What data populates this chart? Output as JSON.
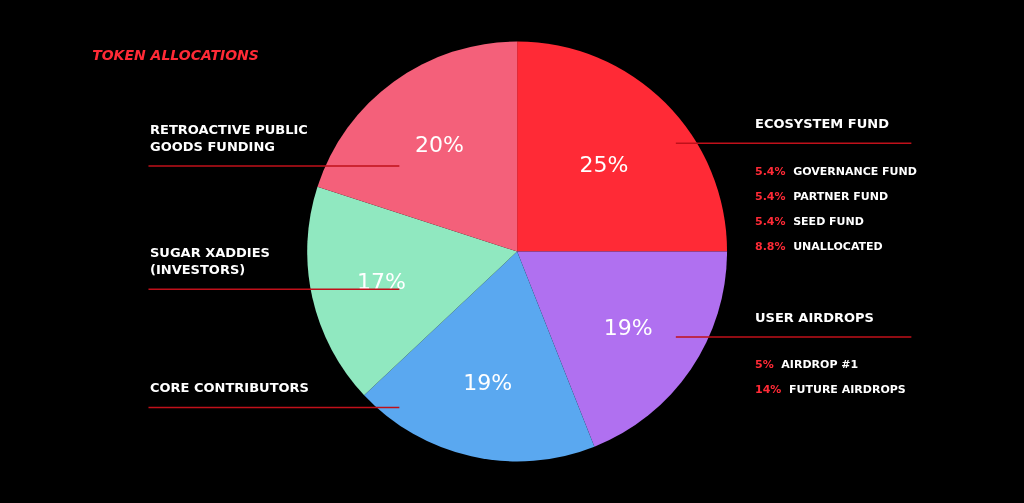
{
  "chart_data": {
    "type": "pie",
    "title": "TOKEN ALLOCATIONS",
    "categories": [
      "ECOSYSTEM FUND",
      "USER AIRDROPS",
      "CORE CONTRIBUTORS",
      "SUGAR XADDIES (INVESTORS)",
      "RETROACTIVE PUBLIC GOODS FUNDING"
    ],
    "values": [
      25,
      19,
      19,
      17,
      20
    ],
    "colors": [
      "#ff2a36",
      "#b070f0",
      "#5aa8f0",
      "#90e8c0",
      "#f4607a"
    ],
    "value_labels": [
      "25%",
      "19%",
      "19%",
      "17%",
      "20%"
    ],
    "annotations": [
      "5.4% GOVERNANCE FUND",
      "5.4% PARTNER FUND",
      "5.4% SEED FUND",
      "8.8% UNALLOCATED",
      "5% AIRDROP #1",
      "14% FUTURE AIRDROPS"
    ],
    "legend": false
  }
}
